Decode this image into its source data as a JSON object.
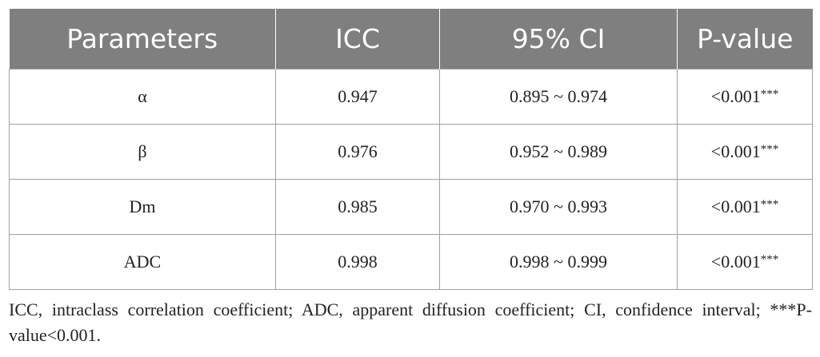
{
  "table": {
    "headers": [
      "Parameters",
      "ICC",
      "95% CI",
      "P-value"
    ],
    "rows": [
      {
        "parameter": "α",
        "icc": "0.947",
        "ci": "0.895 ~ 0.974",
        "p": "<0.001",
        "sig": "***"
      },
      {
        "parameter": "β",
        "icc": "0.976",
        "ci": "0.952 ~ 0.989",
        "p": "<0.001",
        "sig": "***"
      },
      {
        "parameter": "Dm",
        "icc": "0.985",
        "ci": "0.970 ~ 0.993",
        "p": "<0.001",
        "sig": "***"
      },
      {
        "parameter": "ADC",
        "icc": "0.998",
        "ci": "0.998 ~ 0.999",
        "p": "<0.001",
        "sig": "***"
      }
    ]
  },
  "footnote": "ICC, intraclass correlation coefficient; ADC, apparent diffusion coefficient; CI, confidence interval; ***P-value<0.001."
}
